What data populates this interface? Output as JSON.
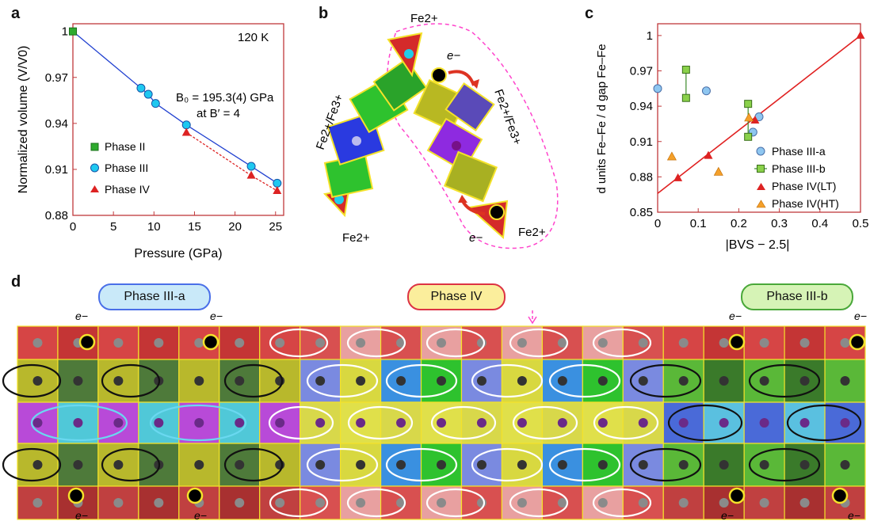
{
  "panels": {
    "a": "a",
    "b": "b",
    "c": "c",
    "d": "d"
  },
  "panel_a": {
    "temp_label": "120 K",
    "bulk_modulus": "B₀ = 195.3(4) GPa",
    "at_b_prime": "at B′ = 4",
    "legend": [
      "Phase II",
      "Phase III",
      "Phase IV"
    ]
  },
  "panel_b": {
    "fe2_top": "Fe2+",
    "fe2_left": "Fe2+",
    "fe2_right": "Fe2+",
    "fe_mixed_left": "Fe2+/Fe3+",
    "fe_mixed_right": "Fe2+/Fe3+",
    "electron": "e−"
  },
  "panel_c": {
    "legend": [
      "Phase III-a",
      "Phase III-b",
      "Phase IV(LT)",
      "Phase IV(HT)"
    ]
  },
  "panel_d": {
    "phase_labels": [
      "Phase III-a",
      "Phase IV",
      "Phase III-b"
    ],
    "electron": "e−"
  },
  "chart_data": [
    {
      "type": "scatter",
      "xlabel": "Pressure (GPa)",
      "ylabel": "Normalized volume (V/V0)",
      "xlim": [
        0,
        26
      ],
      "ylim": [
        0.88,
        1.005
      ],
      "xticks": [
        0,
        5,
        10,
        15,
        20,
        25
      ],
      "yticks": [
        0.88,
        0.91,
        0.94,
        0.97,
        1
      ],
      "series": [
        {
          "name": "Phase II",
          "color": "#2eaa2e",
          "marker": "square",
          "x": [
            0
          ],
          "y": [
            1.0
          ]
        },
        {
          "name": "Phase III",
          "color": "#1ec8f0",
          "marker": "circle",
          "x": [
            8.4,
            9.3,
            10.2,
            14.0,
            22.0,
            25.2
          ],
          "y": [
            0.963,
            0.959,
            0.953,
            0.939,
            0.912,
            0.901
          ]
        },
        {
          "name": "Phase IV",
          "color": "#dd2222",
          "marker": "triangle",
          "x": [
            14.0,
            22.0,
            25.2
          ],
          "y": [
            0.934,
            0.906,
            0.896
          ]
        }
      ]
    },
    {
      "type": "scatter",
      "xlabel": "|BVS − 2.5|",
      "ylabel": "d units Fe–Fe / d gap Fe–Fe",
      "xlim": [
        0,
        0.5
      ],
      "ylim": [
        0.85,
        1.01
      ],
      "xticks": [
        0,
        0.1,
        0.2,
        0.3,
        0.4,
        0.5
      ],
      "yticks": [
        0.85,
        0.88,
        0.91,
        0.94,
        0.97,
        1
      ],
      "fit_line": {
        "x": [
          0,
          0.5
        ],
        "y": [
          0.866,
          1.0
        ]
      },
      "series": [
        {
          "name": "Phase III-a",
          "color": "#8ec6f0",
          "marker": "circle",
          "x": [
            0.0,
            0.12,
            0.235,
            0.25
          ],
          "y": [
            0.955,
            0.953,
            0.918,
            0.931
          ]
        },
        {
          "name": "Phase III-b",
          "color": "#8ad14a",
          "marker": "square",
          "pairs": [
            [
              0.07,
              0.971,
              0.07,
              0.947
            ],
            [
              0.223,
              0.942,
              0.223,
              0.914
            ]
          ]
        },
        {
          "name": "Phase IV(LT)",
          "color": "#dd2222",
          "marker": "triangle",
          "x": [
            0.05,
            0.125,
            0.24,
            0.5
          ],
          "y": [
            0.879,
            0.898,
            0.928,
            1.0
          ]
        },
        {
          "name": "Phase IV(HT)",
          "color": "#f4a02a",
          "marker": "triangle",
          "x": [
            0.035,
            0.15,
            0.225
          ],
          "y": [
            0.897,
            0.884,
            0.93
          ]
        }
      ]
    }
  ]
}
